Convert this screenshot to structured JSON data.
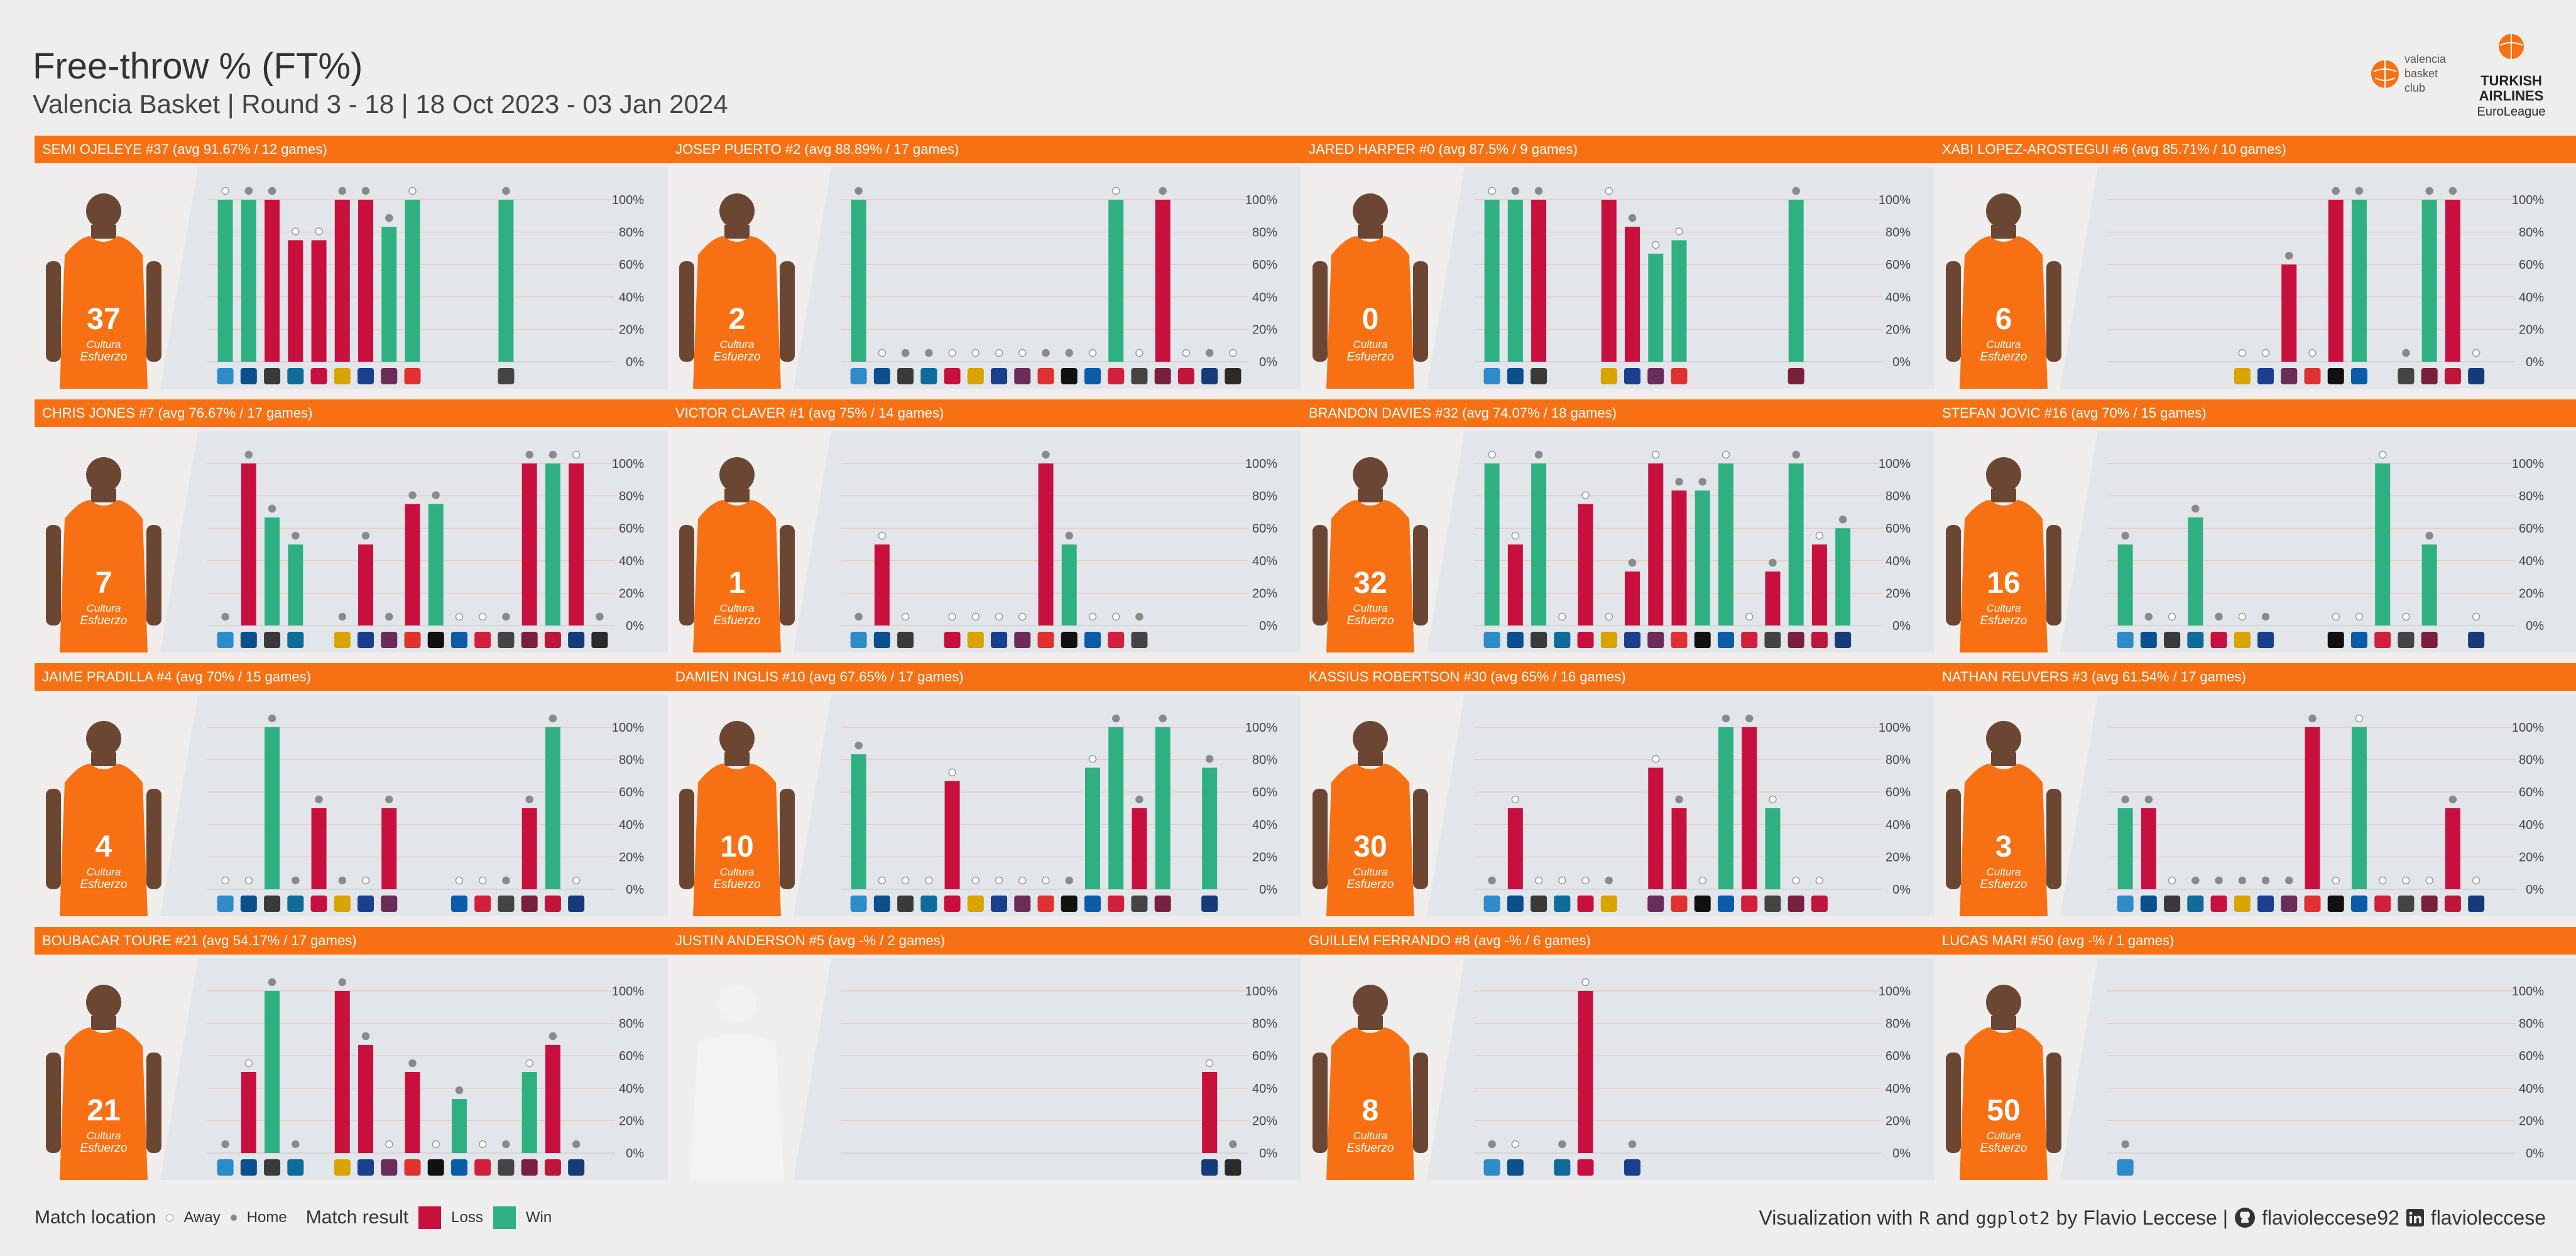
{
  "header": {
    "title": "Free-throw % (FT%)",
    "subtitle": "Valencia Basket | Round 3 - 18 | 18 Oct 2023 - 03 Jan 2024"
  },
  "logos": {
    "club_lines": [
      "valencia",
      "basket",
      "club"
    ],
    "league_lines": [
      "TURKISH",
      "AIRLINES",
      "EuroLeague"
    ]
  },
  "colors": {
    "header_bar": "#f77114",
    "loss": "#c8103e",
    "win": "#2fb083",
    "background": "#efeeec",
    "panel": "#e2e6ea"
  },
  "chart_data": {
    "type": "bar",
    "y_axis": {
      "ticks": [
        "0%",
        "20%",
        "40%",
        "60%",
        "80%",
        "100%"
      ],
      "ylim": [
        0,
        100
      ]
    },
    "x_slots": 17,
    "players": [
      {
        "label": "SEMI OJELEYE #37 (avg 91.67% / 12 games)",
        "jersey": "37",
        "games": [
          [
            0,
            100,
            "W",
            "A"
          ],
          [
            1,
            100,
            "W",
            "H"
          ],
          [
            2,
            100,
            "L",
            "H"
          ],
          [
            3,
            75,
            "L",
            "A"
          ],
          [
            4,
            75,
            "L",
            "A"
          ],
          [
            5,
            100,
            "L",
            "H"
          ],
          [
            6,
            100,
            "L",
            "H"
          ],
          [
            7,
            83.3,
            "W",
            "H"
          ],
          [
            8,
            100,
            "W",
            "A"
          ],
          [
            12,
            100,
            "W",
            "H"
          ]
        ]
      },
      {
        "label": "JOSEP PUERTO #2 (avg 88.89% / 17 games)",
        "jersey": "2",
        "games": [
          [
            0,
            100,
            "W",
            "H"
          ],
          [
            1,
            0,
            "",
            "A"
          ],
          [
            2,
            0,
            "",
            "H"
          ],
          [
            3,
            0,
            "",
            "H"
          ],
          [
            4,
            0,
            "",
            "A"
          ],
          [
            5,
            0,
            "",
            "A"
          ],
          [
            6,
            0,
            "",
            "A"
          ],
          [
            7,
            0,
            "",
            "A"
          ],
          [
            8,
            0,
            "",
            "H"
          ],
          [
            9,
            0,
            "",
            "H"
          ],
          [
            10,
            0,
            "",
            "A"
          ],
          [
            11,
            100,
            "W",
            "A"
          ],
          [
            12,
            0,
            "",
            "A"
          ],
          [
            13,
            100,
            "L",
            "H"
          ],
          [
            14,
            0,
            "",
            "A"
          ],
          [
            15,
            0,
            "",
            "H"
          ],
          [
            16,
            0,
            "",
            "A"
          ]
        ]
      },
      {
        "label": "JARED HARPER #0 (avg 87.5% / 9 games)",
        "jersey": "0",
        "games": [
          [
            0,
            100,
            "W",
            "A"
          ],
          [
            1,
            100,
            "W",
            "H"
          ],
          [
            2,
            100,
            "L",
            "H"
          ],
          [
            5,
            100,
            "L",
            "A"
          ],
          [
            6,
            83.3,
            "L",
            "H"
          ],
          [
            7,
            66.7,
            "W",
            "A"
          ],
          [
            8,
            75,
            "W",
            "A"
          ],
          [
            13,
            100,
            "W",
            "H"
          ]
        ]
      },
      {
        "label": "XABI LOPEZ-AROSTEGUI #6 (avg 85.71% / 10 games)",
        "jersey": "6",
        "games": [
          [
            5,
            0,
            "",
            "A"
          ],
          [
            6,
            0,
            "",
            "A"
          ],
          [
            7,
            60,
            "L",
            "H"
          ],
          [
            8,
            0,
            "",
            "A"
          ],
          [
            9,
            100,
            "L",
            "H"
          ],
          [
            10,
            100,
            "W",
            "H"
          ],
          [
            12,
            0,
            "",
            "H"
          ],
          [
            13,
            100,
            "W",
            "H"
          ],
          [
            14,
            100,
            "L",
            "H"
          ],
          [
            15,
            0,
            "",
            "A"
          ]
        ]
      },
      {
        "label": "CHRIS JONES #7 (avg 76.67% / 17 games)",
        "jersey": "7",
        "games": [
          [
            0,
            0,
            "",
            "H"
          ],
          [
            1,
            100,
            "L",
            "H"
          ],
          [
            2,
            66.7,
            "W",
            "H"
          ],
          [
            3,
            50,
            "W",
            "H"
          ],
          [
            5,
            0,
            "",
            "H"
          ],
          [
            6,
            50,
            "L",
            "H"
          ],
          [
            7,
            0,
            "",
            "H"
          ],
          [
            8,
            75,
            "L",
            "H"
          ],
          [
            9,
            75,
            "W",
            "H"
          ],
          [
            10,
            0,
            "",
            "A"
          ],
          [
            11,
            0,
            "",
            "A"
          ],
          [
            12,
            0,
            "",
            "H"
          ],
          [
            13,
            100,
            "L",
            "H"
          ],
          [
            14,
            100,
            "W",
            "H"
          ],
          [
            15,
            100,
            "L",
            "A"
          ],
          [
            16,
            0,
            "",
            "H"
          ]
        ]
      },
      {
        "label": "VICTOR CLAVER #1 (avg 75% / 14 games)",
        "jersey": "1",
        "games": [
          [
            0,
            0,
            "",
            "H"
          ],
          [
            1,
            50,
            "L",
            "A"
          ],
          [
            2,
            0,
            "",
            "A"
          ],
          [
            4,
            0,
            "",
            "A"
          ],
          [
            5,
            0,
            "",
            "A"
          ],
          [
            6,
            0,
            "",
            "A"
          ],
          [
            7,
            0,
            "",
            "A"
          ],
          [
            8,
            100,
            "L",
            "H"
          ],
          [
            9,
            50,
            "W",
            "H"
          ],
          [
            10,
            0,
            "",
            "A"
          ],
          [
            11,
            0,
            "",
            "A"
          ],
          [
            12,
            0,
            "",
            "H"
          ]
        ]
      },
      {
        "label": "BRANDON DAVIES #32 (avg 74.07% / 18 games)",
        "jersey": "32",
        "games": [
          [
            0,
            100,
            "W",
            "A"
          ],
          [
            1,
            50,
            "L",
            "A"
          ],
          [
            2,
            100,
            "W",
            "H"
          ],
          [
            3,
            0,
            "",
            "A"
          ],
          [
            4,
            75,
            "L",
            "A"
          ],
          [
            5,
            0,
            "",
            "A"
          ],
          [
            6,
            33.3,
            "L",
            "H"
          ],
          [
            7,
            100,
            "L",
            "A"
          ],
          [
            8,
            83.3,
            "L",
            "H"
          ],
          [
            9,
            83.3,
            "W",
            "H"
          ],
          [
            10,
            100,
            "W",
            "A"
          ],
          [
            11,
            0,
            "",
            "A"
          ],
          [
            12,
            33.3,
            "L",
            "H"
          ],
          [
            13,
            100,
            "W",
            "H"
          ],
          [
            14,
            50,
            "L",
            "A"
          ],
          [
            15,
            60,
            "W",
            "H"
          ]
        ]
      },
      {
        "label": "STEFAN JOVIC #16 (avg 70% / 15 games)",
        "jersey": "16",
        "games": [
          [
            0,
            50,
            "W",
            "H"
          ],
          [
            1,
            0,
            "",
            "H"
          ],
          [
            2,
            0,
            "",
            "A"
          ],
          [
            3,
            66.7,
            "W",
            "H"
          ],
          [
            4,
            0,
            "",
            "H"
          ],
          [
            5,
            0,
            "",
            "A"
          ],
          [
            6,
            0,
            "",
            "H"
          ],
          [
            9,
            0,
            "",
            "A"
          ],
          [
            10,
            0,
            "",
            "A"
          ],
          [
            11,
            100,
            "W",
            "A"
          ],
          [
            12,
            0,
            "",
            "A"
          ],
          [
            13,
            50,
            "W",
            "H"
          ],
          [
            15,
            0,
            "",
            "A"
          ]
        ]
      },
      {
        "label": "JAIME PRADILLA #4 (avg 70% / 15 games)",
        "jersey": "4",
        "games": [
          [
            0,
            0,
            "",
            "A"
          ],
          [
            1,
            0,
            "",
            "A"
          ],
          [
            2,
            100,
            "W",
            "H"
          ],
          [
            3,
            0,
            "",
            "H"
          ],
          [
            4,
            50,
            "L",
            "H"
          ],
          [
            5,
            0,
            "",
            "H"
          ],
          [
            6,
            0,
            "",
            "A"
          ],
          [
            7,
            50,
            "L",
            "H"
          ],
          [
            10,
            0,
            "",
            "A"
          ],
          [
            11,
            0,
            "",
            "A"
          ],
          [
            12,
            0,
            "",
            "H"
          ],
          [
            13,
            50,
            "L",
            "H"
          ],
          [
            14,
            100,
            "W",
            "H"
          ],
          [
            15,
            0,
            "",
            "A"
          ]
        ]
      },
      {
        "label": "DAMIEN INGLIS #10 (avg 67.65% / 17 games)",
        "jersey": "10",
        "games": [
          [
            0,
            83.3,
            "W",
            "H"
          ],
          [
            1,
            0,
            "",
            "A"
          ],
          [
            2,
            0,
            "",
            "A"
          ],
          [
            3,
            0,
            "",
            "A"
          ],
          [
            4,
            66.7,
            "L",
            "A"
          ],
          [
            5,
            0,
            "",
            "A"
          ],
          [
            6,
            0,
            "",
            "A"
          ],
          [
            7,
            0,
            "",
            "A"
          ],
          [
            8,
            0,
            "",
            "A"
          ],
          [
            9,
            0,
            "",
            "H"
          ],
          [
            10,
            75,
            "W",
            "A"
          ],
          [
            11,
            100,
            "W",
            "H"
          ],
          [
            12,
            50,
            "L",
            "H"
          ],
          [
            13,
            100,
            "W",
            "H"
          ],
          [
            15,
            75,
            "W",
            "H"
          ]
        ]
      },
      {
        "label": "KASSIUS ROBERTSON #30 (avg 65% / 16 games)",
        "jersey": "30",
        "games": [
          [
            0,
            0,
            "",
            "H"
          ],
          [
            1,
            50,
            "L",
            "A"
          ],
          [
            2,
            0,
            "",
            "A"
          ],
          [
            3,
            0,
            "",
            "A"
          ],
          [
            4,
            0,
            "",
            "A"
          ],
          [
            5,
            0,
            "",
            "H"
          ],
          [
            7,
            75,
            "L",
            "A"
          ],
          [
            8,
            50,
            "L",
            "H"
          ],
          [
            9,
            0,
            "",
            "A"
          ],
          [
            10,
            100,
            "W",
            "H"
          ],
          [
            11,
            100,
            "L",
            "H"
          ],
          [
            12,
            50,
            "W",
            "A"
          ],
          [
            13,
            0,
            "",
            "A"
          ],
          [
            14,
            0,
            "",
            "A"
          ]
        ]
      },
      {
        "label": "NATHAN REUVERS #3 (avg 61.54% / 17 games)",
        "jersey": "3",
        "games": [
          [
            0,
            50,
            "W",
            "H"
          ],
          [
            1,
            50,
            "L",
            "H"
          ],
          [
            2,
            0,
            "",
            "A"
          ],
          [
            3,
            0,
            "",
            "H"
          ],
          [
            4,
            0,
            "",
            "H"
          ],
          [
            5,
            0,
            "",
            "H"
          ],
          [
            6,
            0,
            "",
            "H"
          ],
          [
            7,
            0,
            "",
            "H"
          ],
          [
            8,
            100,
            "L",
            "H"
          ],
          [
            9,
            0,
            "",
            "A"
          ],
          [
            10,
            100,
            "W",
            "A"
          ],
          [
            11,
            0,
            "",
            "A"
          ],
          [
            12,
            0,
            "",
            "A"
          ],
          [
            13,
            0,
            "",
            "A"
          ],
          [
            14,
            50,
            "L",
            "H"
          ],
          [
            15,
            0,
            "",
            "A"
          ]
        ]
      },
      {
        "label": "BOUBACAR TOURE #21 (avg 54.17% / 17 games)",
        "jersey": "21",
        "games": [
          [
            0,
            0,
            "",
            "H"
          ],
          [
            1,
            50,
            "L",
            "A"
          ],
          [
            2,
            100,
            "W",
            "H"
          ],
          [
            3,
            0,
            "",
            "H"
          ],
          [
            5,
            100,
            "L",
            "H"
          ],
          [
            6,
            66.7,
            "L",
            "H"
          ],
          [
            7,
            0,
            "",
            "A"
          ],
          [
            8,
            50,
            "L",
            "H"
          ],
          [
            9,
            0,
            "",
            "A"
          ],
          [
            10,
            33.3,
            "W",
            "H"
          ],
          [
            11,
            0,
            "",
            "A"
          ],
          [
            12,
            0,
            "",
            "H"
          ],
          [
            13,
            50,
            "W",
            "A"
          ],
          [
            14,
            66.7,
            "L",
            "H"
          ],
          [
            15,
            0,
            "",
            "H"
          ]
        ]
      },
      {
        "label": "JUSTIN ANDERSON #5 (avg -% / 2 games)",
        "jersey": "",
        "games": [
          [
            15,
            50,
            "L",
            "A"
          ],
          [
            16,
            0,
            "",
            "H"
          ]
        ]
      },
      {
        "label": "GUILLEM FERRANDO #8 (avg -% / 6 games)",
        "jersey": "8",
        "games": [
          [
            0,
            0,
            "",
            "H"
          ],
          [
            1,
            0,
            "",
            "A"
          ],
          [
            3,
            0,
            "",
            "H"
          ],
          [
            4,
            100,
            "L",
            "A"
          ],
          [
            6,
            0,
            "",
            "H"
          ]
        ]
      },
      {
        "label": "LUCAS MARI #50 (avg -% / 1 games)",
        "jersey": "50",
        "games": [
          [
            0,
            0,
            "",
            "H"
          ]
        ]
      }
    ]
  },
  "player_shirt": {
    "sponsor_line1": "Cultura",
    "sponsor_line2": "Esfuerzo"
  },
  "legend": {
    "location_label": "Match location",
    "away_label": "Away",
    "home_label": "Home",
    "result_label": "Match result",
    "loss_label": "Loss",
    "win_label": "Win"
  },
  "credits": {
    "prefix": "Visualization with",
    "tool1": "R",
    "and": "and",
    "tool2": "ggplot2",
    "author": "by Flavio Leccese |",
    "github_icon": "github-icon",
    "github": "flavioleccese92",
    "linkedin_icon": "linkedin-icon",
    "linkedin": "flavioleccese"
  }
}
